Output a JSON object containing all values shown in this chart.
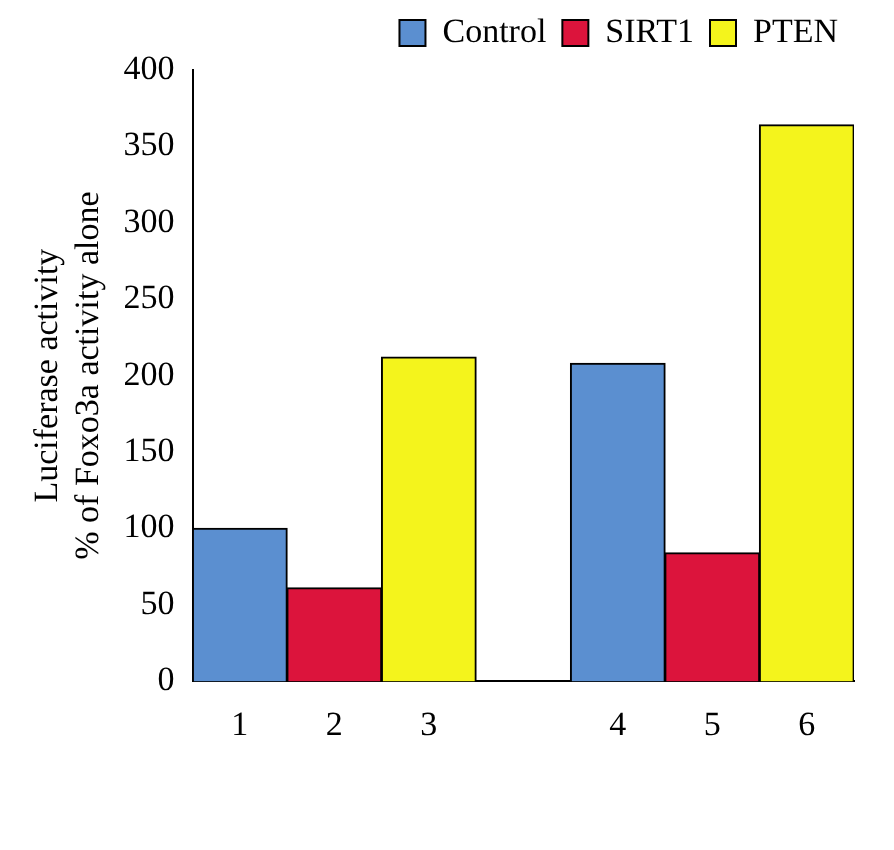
{
  "chart_data": {
    "type": "bar",
    "ylabel": "Luciferase activity\n% of Foxo3a activity alone",
    "categories": [
      "1",
      "2",
      "3",
      null,
      "4",
      "5",
      "6"
    ],
    "series": [
      {
        "name": "Control",
        "color": "#5b8fd0",
        "values": [
          100,
          null,
          null,
          null,
          208,
          null,
          null
        ]
      },
      {
        "name": "SIRT1",
        "color": "#dc143c",
        "values": [
          null,
          61,
          null,
          null,
          null,
          84,
          null
        ]
      },
      {
        "name": "PTEN",
        "color": "#f4f41c",
        "values": [
          null,
          null,
          212,
          null,
          null,
          null,
          364
        ]
      }
    ],
    "ylim": [
      0,
      400
    ],
    "yticks": [
      0,
      50,
      100,
      150,
      200,
      250,
      300,
      350,
      400
    ],
    "grid": false,
    "legend": "top right"
  }
}
